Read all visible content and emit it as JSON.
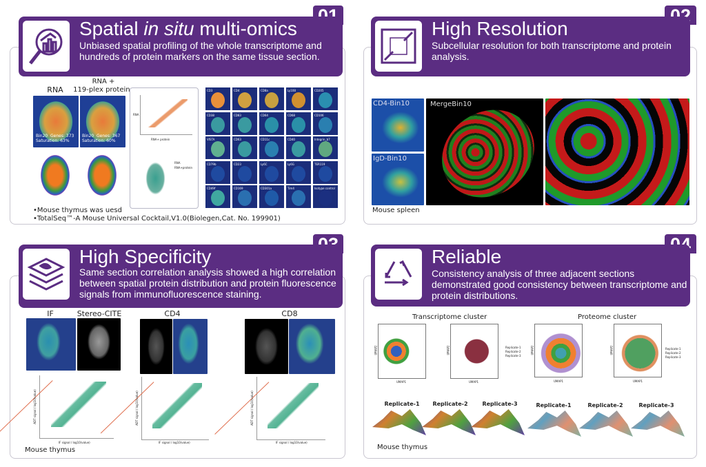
{
  "colors": {
    "brand_purple": "#5b2d82",
    "box_border": "#c9c6d0"
  },
  "panels": [
    {
      "number": "01",
      "title_pre": "Spatial ",
      "title_italic": "in situ",
      "title_post": " multi-omics",
      "description": "Unbiased spatial profiling of the whole transcriptome and hundreds of protein markers on the same tissue section.",
      "icon": "magnifier-bar-chart-icon",
      "labels": {
        "rna": "RNA",
        "rna_protein": "RNA +\n119-plex proteins",
        "rna_stats": "Bin20  Genes: 373\nSaturation: 63%",
        "rp_stats": "Bin20  Genes: 367\nSaturation: 60%",
        "scatter_x": "RNA+ protein",
        "scatter_y": "RNA",
        "umap_legend": [
          "RNA",
          "RNA+protein"
        ]
      },
      "markers": [
        "CD3",
        "CD4",
        "CD8a",
        "Ly108",
        "CD205",
        "CD38",
        "CD83",
        "CD64",
        "CD68",
        "CD106",
        "VISTA",
        "CD63",
        "CD11c",
        "CD40",
        "Integrin_b7",
        "CD79b",
        "CD23",
        "Ly6C",
        "Ly6G",
        "TER119",
        "CD49f",
        "CD169",
        "CD301a",
        "Tim4",
        "Isotype control"
      ],
      "notes": [
        "•Mouse thymus was uesd",
        "•TotalSeq™-A Mouse Universal Cocktail,V1.0(Biolegen,Cat. No. 199901)"
      ]
    },
    {
      "number": "02",
      "title": "High Resolution",
      "description": "Subcellular resolution for both transcriptome and protein analysis.",
      "icon": "zoom-frame-icon",
      "labels": {
        "cd4": "CD4-Bin10",
        "igd": "IgD-Bin10",
        "merge": "MergeBin10",
        "tissue": "Mouse spleen"
      }
    },
    {
      "number": "03",
      "title": "High Specificity",
      "description": "Same section correlation analysis showed a high correlation between spatial protein distribution and protein fluorescence signals from immunofluorescence staining.",
      "icon": "layers-icon",
      "labels": {
        "if": "IF",
        "stereo": "Stereo-CITE",
        "cd4": "CD4",
        "cd8": "CD8",
        "xaxis": "IF signal / log10(value)",
        "yaxis": "ADT signal / log10(value)",
        "tissue": "Mouse thymus"
      }
    },
    {
      "number": "04",
      "title": "Reliable",
      "description": "Consistency analysis of three adjacent sections demonstrated good consistency between transcriptome and protein distributions.",
      "icon": "recycle-triangle-icon",
      "labels": {
        "transcriptome": "Transcriptome cluster",
        "proteome": "Proteome cluster",
        "replicates": [
          "Replicate-1",
          "Replicate-2",
          "Replicate-3"
        ],
        "tissue": "Mouse thymus",
        "umap_x": "UMAP1",
        "umap_y": "UMAP2"
      }
    }
  ]
}
